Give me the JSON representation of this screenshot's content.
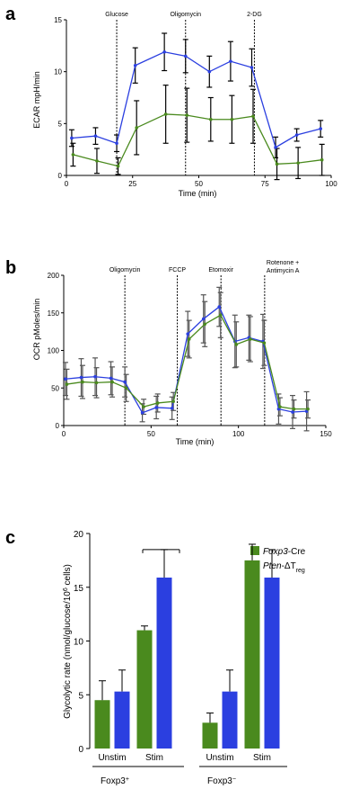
{
  "colors": {
    "blue": "#2b3fe0",
    "green": "#4a8a1e"
  },
  "chart_data": [
    {
      "panel": "a",
      "type": "line",
      "xlabel": "Time (min)",
      "ylabel": "ECAR mpH/min",
      "xlim": [
        0,
        100
      ],
      "ylim": [
        0,
        15
      ],
      "xticks": [
        0,
        25,
        50,
        75,
        100
      ],
      "yticks": [
        0,
        5,
        10,
        15
      ],
      "x": [
        2,
        11,
        19,
        26,
        37,
        45,
        54,
        62,
        70,
        79,
        87,
        96
      ],
      "injections": [
        {
          "label": "Glucose",
          "x": 19
        },
        {
          "label": "Oligomycin",
          "x": 45
        },
        {
          "label": "2-DG",
          "x": 71
        }
      ],
      "series": [
        {
          "color": "blue",
          "values": [
            3.6,
            3.8,
            3.1,
            10.6,
            11.9,
            11.5,
            10.0,
            11.0,
            10.4,
            2.7,
            3.9,
            4.5
          ],
          "err": [
            0.8,
            0.8,
            0.8,
            1.7,
            1.8,
            1.6,
            1.5,
            1.9,
            1.8,
            1.0,
            0.6,
            0.8
          ]
        },
        {
          "color": "green",
          "values": [
            2.0,
            1.4,
            0.9,
            4.6,
            5.9,
            5.8,
            5.4,
            5.4,
            5.7,
            1.1,
            1.2,
            1.5
          ],
          "err": [
            1.1,
            1.2,
            0.8,
            2.6,
            2.8,
            2.6,
            2.1,
            2.3,
            2.6,
            1.5,
            1.5,
            1.5
          ]
        }
      ]
    },
    {
      "panel": "b",
      "type": "line",
      "xlabel": "Time (min)",
      "ylabel": "OCR pMoles/min",
      "xlim": [
        0,
        150
      ],
      "ylim": [
        0,
        200
      ],
      "xticks": [
        0,
        50,
        100,
        150
      ],
      "yticks": [
        0,
        50,
        100,
        150,
        200
      ],
      "x": [
        1,
        10,
        18,
        27,
        35,
        45,
        53,
        62,
        71,
        80,
        89,
        98,
        106,
        114,
        123,
        131,
        139
      ],
      "injections": [
        {
          "label": "Oligomycin",
          "x": 35
        },
        {
          "label": "FCCP",
          "x": 65
        },
        {
          "label": "Etomoxir",
          "x": 90
        },
        {
          "label": "Rotenone +",
          "label2": "Antimycin A",
          "x": 115
        }
      ],
      "series": [
        {
          "color": "blue",
          "values": [
            62,
            64,
            65,
            63,
            58,
            17,
            24,
            23,
            122,
            142,
            158,
            112,
            117,
            112,
            22,
            18,
            19
          ],
          "err": [
            22,
            25,
            25,
            22,
            20,
            12,
            15,
            15,
            30,
            32,
            26,
            35,
            30,
            36,
            20,
            22,
            26
          ]
        },
        {
          "color": "green",
          "values": [
            55,
            58,
            57,
            58,
            50,
            25,
            30,
            32,
            115,
            135,
            147,
            108,
            115,
            110,
            25,
            22,
            22
          ],
          "err": [
            20,
            22,
            20,
            20,
            18,
            10,
            12,
            12,
            25,
            30,
            30,
            30,
            30,
            30,
            12,
            12,
            12
          ]
        }
      ]
    },
    {
      "panel": "c",
      "type": "bar",
      "ylabel_main": "Glycolytic rate (nmol/glucose/10",
      "ylabel_sup": "6",
      "ylabel_end": " cells)",
      "ylim": [
        0,
        20
      ],
      "yticks": [
        0,
        5,
        10,
        15,
        20
      ],
      "categories": [
        "Unstim",
        "Stim",
        "Unstim",
        "Stim"
      ],
      "groups": [
        {
          "label": "Foxp3",
          "sup": "+"
        },
        {
          "label": "Foxp3",
          "sup": "−"
        }
      ],
      "legend_position": "top-right",
      "significance": "*",
      "series": [
        {
          "name_italic": "Foxp3",
          "name_rest": "-Cre",
          "color": "green",
          "values": [
            4.5,
            11.0,
            2.4,
            17.5
          ],
          "err": [
            1.8,
            0.4,
            0.9,
            1.5
          ]
        },
        {
          "name_italic": "Pten",
          "name_rest": "-ΔT",
          "name_sub": "reg",
          "color": "blue",
          "values": [
            5.3,
            15.9,
            5.3,
            15.9
          ],
          "err": [
            2.0,
            2.6,
            2.0,
            2.6
          ]
        }
      ]
    }
  ]
}
